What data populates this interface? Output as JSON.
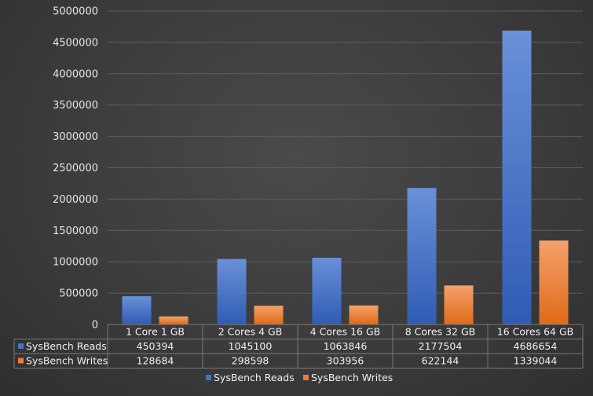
{
  "chart_data": {
    "type": "bar",
    "categories": [
      "1  Core 1 GB",
      "2  Cores 4 GB",
      "4  Cores 16 GB",
      "8  Cores 32 GB",
      "16  Cores 64 GB"
    ],
    "series": [
      {
        "name": "SysBench Reads",
        "values": [
          450394,
          1045100,
          1063846,
          2177504,
          4686654
        ],
        "color": "#4472c4"
      },
      {
        "name": "SysBench Writes",
        "values": [
          128684,
          298598,
          303956,
          622144,
          1339044
        ],
        "color": "#ed7d31"
      }
    ],
    "ylim": [
      0,
      5000000
    ],
    "yticks": [
      0,
      500000,
      1000000,
      1500000,
      2000000,
      2500000,
      3000000,
      3500000,
      4000000,
      4500000,
      5000000
    ],
    "grid": true,
    "data_table": true,
    "legend_position": "bottom"
  }
}
